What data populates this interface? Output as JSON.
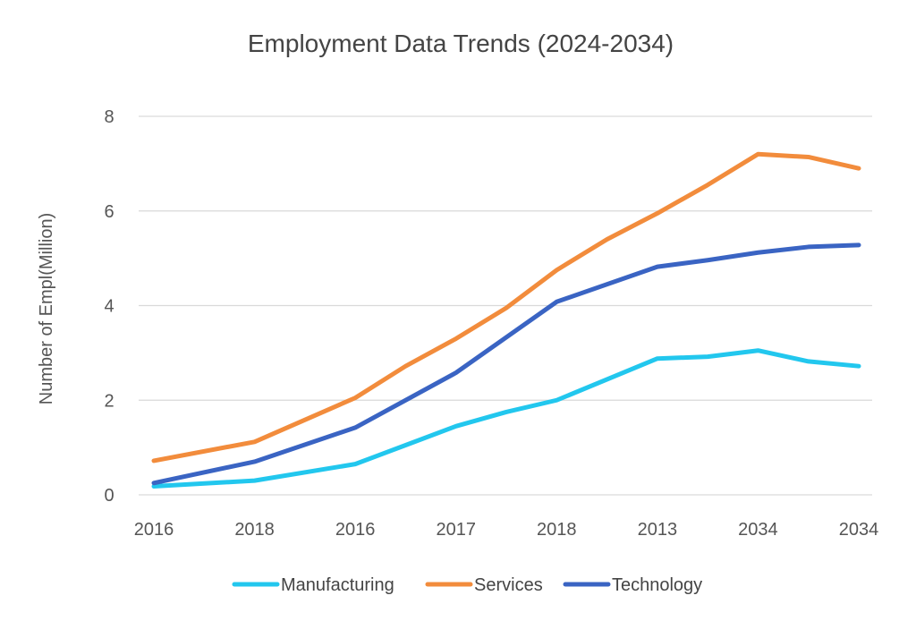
{
  "chart_data": {
    "type": "line",
    "title": "Employment Data Trends (2024-2034)",
    "xlabel": "",
    "ylabel": "Number of Empl(Million)",
    "categories": [
      "2016",
      "2018",
      "2016",
      "2017",
      "2018",
      "2013",
      "2034",
      "2034"
    ],
    "ylim": [
      0,
      8
    ],
    "yticks": [
      0,
      2,
      4,
      6,
      8
    ],
    "grid": true,
    "legend_position": "bottom-center",
    "series": [
      {
        "name": "Manufacturing",
        "color": "#22c7ee",
        "x": [
          0,
          1,
          2,
          2.5,
          3,
          3.5,
          4,
          5,
          5.5,
          6,
          6.5,
          7
        ],
        "values": [
          0.18,
          0.3,
          0.65,
          1.05,
          1.45,
          1.75,
          2.0,
          2.88,
          2.92,
          3.05,
          2.82,
          2.72
        ]
      },
      {
        "name": "Services",
        "color": "#f28c3c",
        "x": [
          0,
          1,
          2,
          2.5,
          3,
          3.5,
          4,
          4.5,
          5,
          5.5,
          6,
          6.5,
          7
        ],
        "values": [
          0.72,
          1.12,
          2.05,
          2.72,
          3.3,
          3.95,
          4.75,
          5.4,
          5.95,
          6.55,
          7.2,
          7.14,
          6.9
        ]
      },
      {
        "name": "Technology",
        "color": "#3a64c3",
        "x": [
          0,
          1,
          2,
          3,
          4,
          5,
          5.5,
          6,
          6.5,
          7
        ],
        "values": [
          0.25,
          0.7,
          1.42,
          2.58,
          4.08,
          4.82,
          4.96,
          5.12,
          5.24,
          5.28
        ]
      }
    ]
  }
}
